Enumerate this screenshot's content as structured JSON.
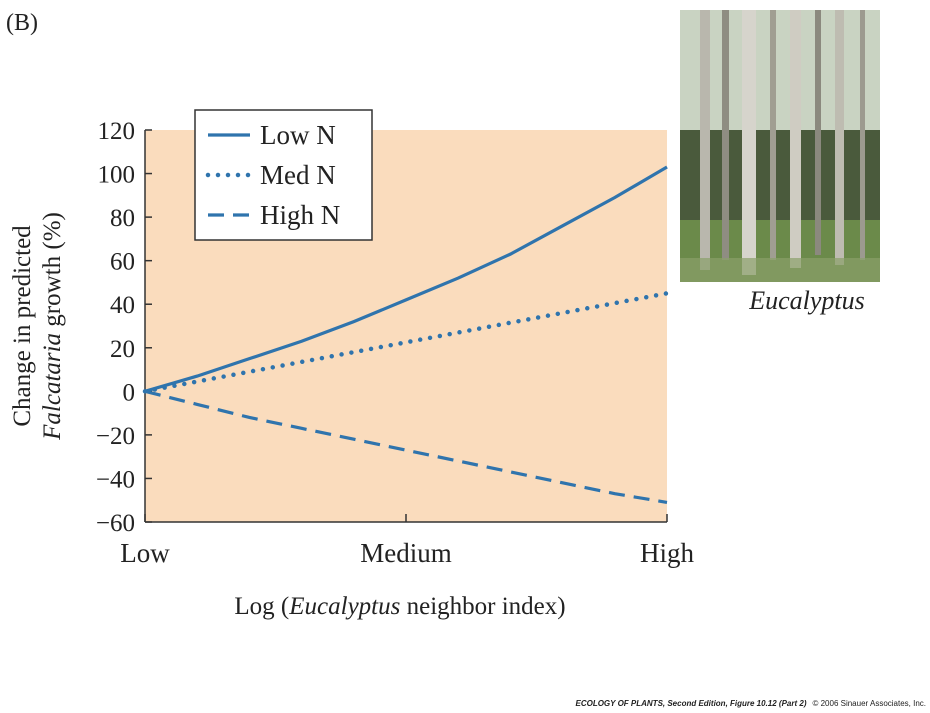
{
  "panel_label": "(B)",
  "photo_caption": "Eucalyptus",
  "credit": {
    "title": "ECOLOGY OF PLANTS, Second Edition, Figure 10.12 (Part 2)",
    "copyright": "© 2006 Sinauer Associates, Inc."
  },
  "chart_data": {
    "type": "line",
    "ylabel": {
      "line1": "Change in predicted",
      "line2_italic": "Falcataria",
      "line2_rest": " growth (%)"
    },
    "xlabel": {
      "before": "Log (",
      "italic": "Eucalyptus",
      "after": " neighbor index)"
    },
    "x": [
      0,
      0.1,
      0.2,
      0.3,
      0.4,
      0.5,
      0.6,
      0.7,
      0.8,
      0.9,
      1
    ],
    "xlim": [
      0,
      1
    ],
    "xticks": [
      {
        "value": 0,
        "label": "Low"
      },
      {
        "value": 0.5,
        "label": "Medium"
      },
      {
        "value": 1,
        "label": "High"
      }
    ],
    "ylim": [
      -60,
      120
    ],
    "yticks": [
      {
        "value": -60,
        "label": "−60"
      },
      {
        "value": -40,
        "label": "−40"
      },
      {
        "value": -20,
        "label": "−20"
      },
      0,
      20,
      40,
      60,
      80,
      100,
      120
    ],
    "background": "#fadcbd",
    "series": [
      {
        "name": "Low N",
        "color": "#2f74ad",
        "dash": "solid",
        "values": [
          0,
          7,
          15,
          23,
          32,
          42,
          52,
          63,
          76,
          89,
          103
        ]
      },
      {
        "name": "Med N",
        "color": "#2f74ad",
        "dash": "dotted",
        "values": [
          0,
          4.5,
          9,
          13.5,
          18,
          22.5,
          27,
          31.5,
          36,
          40.5,
          45
        ]
      },
      {
        "name": "High N",
        "color": "#2f74ad",
        "dash": "dashed",
        "values": [
          0,
          -6,
          -12,
          -17,
          -22,
          -27,
          -32,
          -37,
          -42,
          -47,
          -51
        ]
      }
    ]
  }
}
